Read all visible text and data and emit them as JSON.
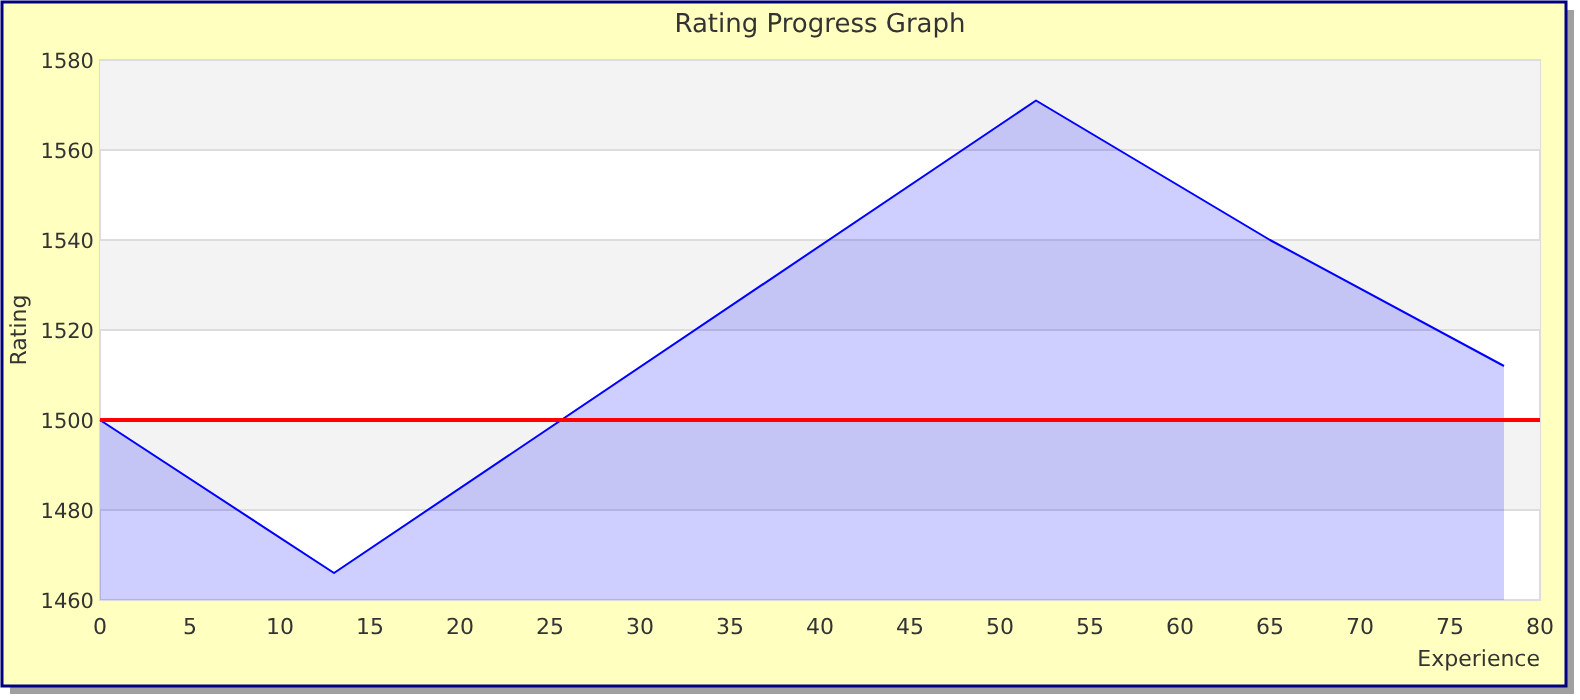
{
  "chart_data": {
    "type": "area",
    "title": "Rating Progress Graph",
    "xlabel": "Experience",
    "ylabel": "Rating",
    "x": [
      0,
      13,
      52,
      65,
      78
    ],
    "series": [
      {
        "color": "#0000ff",
        "values": [
          1500,
          1466,
          1571,
          1540,
          1512
        ]
      }
    ],
    "xlim": [
      0,
      80
    ],
    "xticks": [
      0,
      5,
      10,
      15,
      20,
      25,
      30,
      35,
      40,
      45,
      50,
      55,
      60,
      65,
      70,
      75,
      80
    ],
    "ylim": [
      1460,
      1580
    ],
    "yticks": [
      1460,
      1480,
      1500,
      1520,
      1540,
      1560,
      1580
    ],
    "grid": "y",
    "ref_lines": [
      {
        "axis": "y",
        "value": 1500,
        "color": "#ff0000"
      }
    ]
  }
}
